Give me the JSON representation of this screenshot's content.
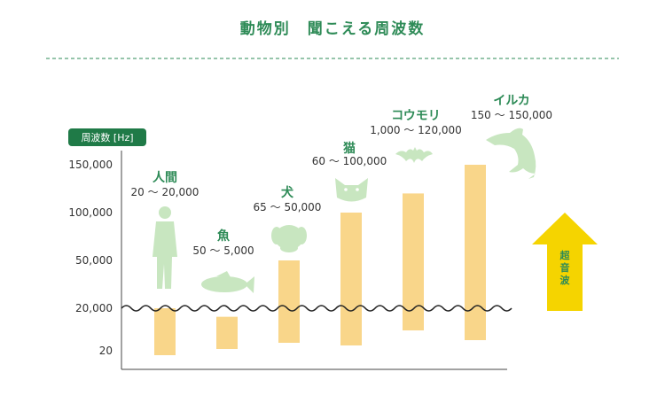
{
  "title": "動物別　聞こえる周波数",
  "unit_badge": "周波数 [Hz]",
  "ultrasound_label": [
    "超",
    "音",
    "波"
  ],
  "colors": {
    "accent": "#2e8b57",
    "bar": "#f9d68a",
    "silhouette": "#c8e6c0",
    "arrow": "#f5d400",
    "badge": "#1f7a47"
  },
  "chart_data": {
    "type": "bar",
    "title": "動物別　聞こえる周波数",
    "ylabel": "周波数 [Hz]",
    "y_ticks": [
      "150,000",
      "100,000",
      "50,000",
      "20,000",
      "20"
    ],
    "y_tick_values": [
      150000,
      100000,
      50000,
      20000,
      20
    ],
    "categories": [
      "人間",
      "魚",
      "犬",
      "猫",
      "コウモリ",
      "イルカ"
    ],
    "range_labels": [
      "20 ～ 20,000",
      "50 ～ 5,000",
      "65 ～ 50,000",
      "60 ～ 100,000",
      "1,000 ～ 120,000",
      "150 ～ 150,000"
    ],
    "ranges": [
      [
        20,
        20000
      ],
      [
        50,
        5000
      ],
      [
        65,
        50000
      ],
      [
        60,
        100000
      ],
      [
        1000,
        120000
      ],
      [
        150,
        150000
      ]
    ],
    "icons": [
      "human-icon",
      "fish-icon",
      "dog-icon",
      "cat-icon",
      "bat-icon",
      "dolphin-icon"
    ],
    "ultrasound_threshold": 20000
  }
}
